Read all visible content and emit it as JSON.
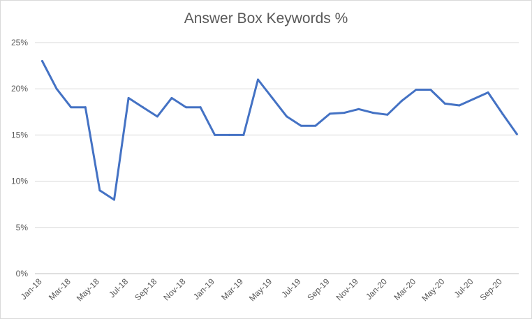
{
  "chart_data": {
    "type": "line",
    "title": "Answer Box Keywords %",
    "xlabel": "",
    "ylabel": "",
    "ylim": [
      0,
      25
    ],
    "y_ticks": [
      "0%",
      "5%",
      "10%",
      "15%",
      "20%",
      "25%"
    ],
    "y_tick_values": [
      0,
      5,
      10,
      15,
      20,
      25
    ],
    "x_tick_labels": [
      "Jan-18",
      "Mar-18",
      "May-18",
      "Jul-18",
      "Sep-18",
      "Nov-18",
      "Jan-19",
      "Mar-19",
      "May-19",
      "Jul-19",
      "Sep-19",
      "Nov-19",
      "Jan-20",
      "Mar-20",
      "May-20",
      "Jul-20",
      "Sep-20"
    ],
    "grid": true,
    "legend": "none",
    "series": [
      {
        "color": "#4472c4",
        "values": [
          23,
          20,
          18,
          18,
          9,
          8,
          19,
          18,
          17,
          19,
          18,
          18,
          15,
          15,
          15,
          21,
          19,
          17,
          16,
          16,
          17.3,
          17.4,
          17.8,
          17.4,
          17.2,
          18.7,
          19.9,
          19.9,
          18.4,
          18.2,
          18.9,
          19.6,
          17.3,
          15.1
        ]
      }
    ]
  }
}
